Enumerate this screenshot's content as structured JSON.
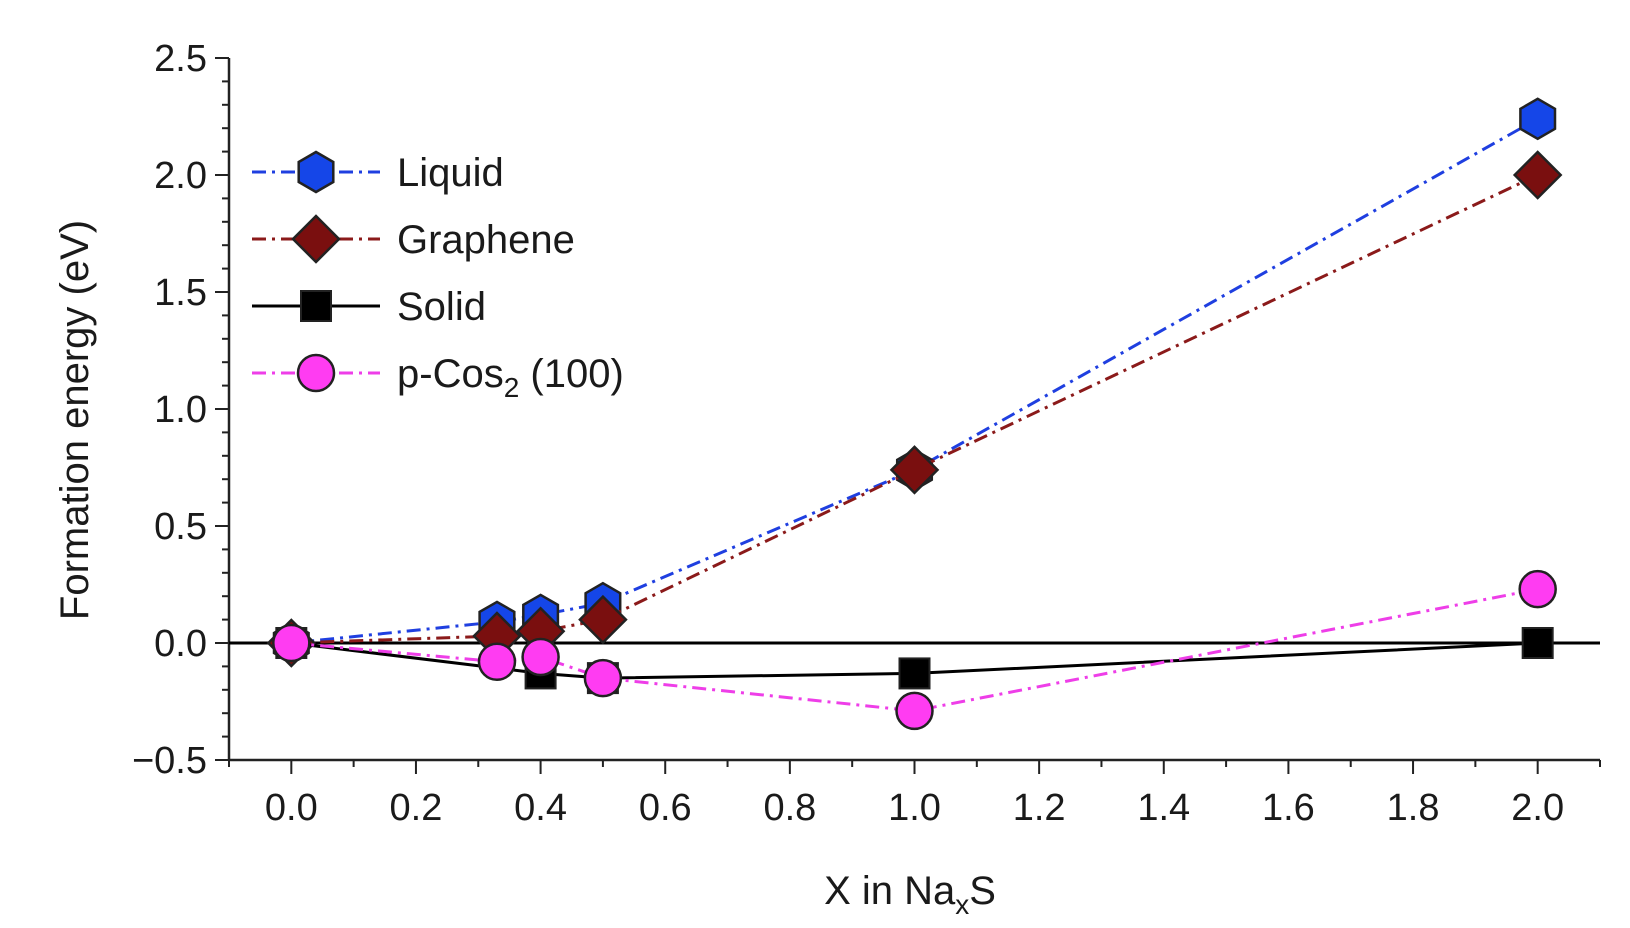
{
  "chart_data": {
    "type": "line",
    "xlabel": "X in Na",
    "xlabel_sub": "x",
    "xlabel_suffix": "S",
    "ylabel": "Formation energy (eV)",
    "xlim": [
      -0.1,
      2.1
    ],
    "ylim": [
      -0.5,
      2.5
    ],
    "x_ticks": [
      0.0,
      0.2,
      0.4,
      0.6,
      0.8,
      1.0,
      1.2,
      1.4,
      1.6,
      1.8,
      2.0
    ],
    "x_tick_labels": [
      "0.0",
      "0.2",
      "0.4",
      "0.6",
      "0.8",
      "1.0",
      "1.2",
      "1.4",
      "1.6",
      "1.8",
      "2.0"
    ],
    "y_ticks": [
      -0.5,
      0.0,
      0.5,
      1.0,
      1.5,
      2.0,
      2.5
    ],
    "y_tick_labels": [
      "−0.5",
      "0.0",
      "0.5",
      "1.0",
      "1.5",
      "2.0",
      "2.5"
    ],
    "zero_line": true,
    "legend_position": "top-left",
    "series": [
      {
        "name": "Liquid",
        "color": "#1f3fe0",
        "marker": "hexagon",
        "marker_color": "#1546e8",
        "line_style": "dash-dot",
        "x": [
          0.0,
          0.33,
          0.4,
          0.5,
          1.0,
          2.0
        ],
        "y": [
          0.0,
          0.09,
          0.12,
          0.17,
          0.74,
          2.24
        ]
      },
      {
        "name": "Graphene",
        "color": "#8b1a1a",
        "marker": "diamond",
        "marker_color": "#7a0f0f",
        "line_style": "dash-dot",
        "x": [
          0.0,
          0.33,
          0.4,
          0.5,
          1.0,
          2.0
        ],
        "y": [
          0.0,
          0.03,
          0.05,
          0.1,
          0.74,
          2.0
        ]
      },
      {
        "name": "Solid",
        "color": "#000000",
        "marker": "square",
        "marker_color": "#000000",
        "line_style": "solid",
        "x": [
          0.0,
          0.4,
          0.5,
          1.0,
          2.0
        ],
        "y": [
          0.0,
          -0.13,
          -0.15,
          -0.13,
          0.0
        ]
      },
      {
        "name": "p-Cos",
        "name_sub": "2",
        "name_suffix": " (100)",
        "color": "#ee3ee8",
        "marker": "circle",
        "marker_color": "#ff3cf2",
        "line_style": "dash-dot",
        "x": [
          0.0,
          0.33,
          0.4,
          0.5,
          1.0,
          2.0
        ],
        "y": [
          0.0,
          -0.08,
          -0.06,
          -0.15,
          -0.29,
          0.23
        ]
      }
    ]
  }
}
